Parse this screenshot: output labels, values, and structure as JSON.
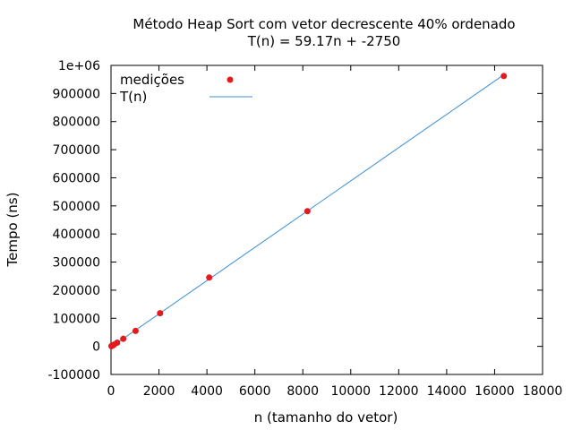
{
  "chart_data": {
    "type": "scatter",
    "title": "Método Heap Sort com vetor decrescente 40% ordenado",
    "subtitle": "T(n) = 59.17n + -2750",
    "xlabel": "n (tamanho do vetor)",
    "ylabel": "Tempo (ns)",
    "xlim": [
      0,
      18000
    ],
    "ylim": [
      -100000,
      1000000
    ],
    "x_ticks": [
      0,
      2000,
      4000,
      6000,
      8000,
      10000,
      12000,
      14000,
      16000,
      18000
    ],
    "x_tick_labels": [
      "0",
      "2000",
      "4000",
      "6000",
      "8000",
      "10000",
      "12000",
      "14000",
      "16000",
      "18000"
    ],
    "y_ticks": [
      -100000,
      0,
      100000,
      200000,
      300000,
      400000,
      500000,
      600000,
      700000,
      800000,
      900000,
      1000000
    ],
    "y_tick_labels": [
      "-100000",
      "0",
      "100000",
      "200000",
      "300000",
      "400000",
      "500000",
      "600000",
      "700000",
      "800000",
      "900000",
      "1e+06"
    ],
    "grid": false,
    "legend_position": "top-left",
    "series": [
      {
        "name": "medições",
        "kind": "points",
        "color": "#e41a1c",
        "x": [
          16,
          32,
          64,
          128,
          256,
          512,
          1024,
          2048,
          4096,
          8192,
          16384
        ],
        "y": [
          800,
          1500,
          3000,
          6500,
          13000,
          27000,
          55000,
          118000,
          245000,
          481000,
          962000
        ]
      },
      {
        "name": "T(n)",
        "kind": "line",
        "color": "#3b8fd6",
        "slope": 59.17,
        "intercept": -2750
      }
    ]
  }
}
